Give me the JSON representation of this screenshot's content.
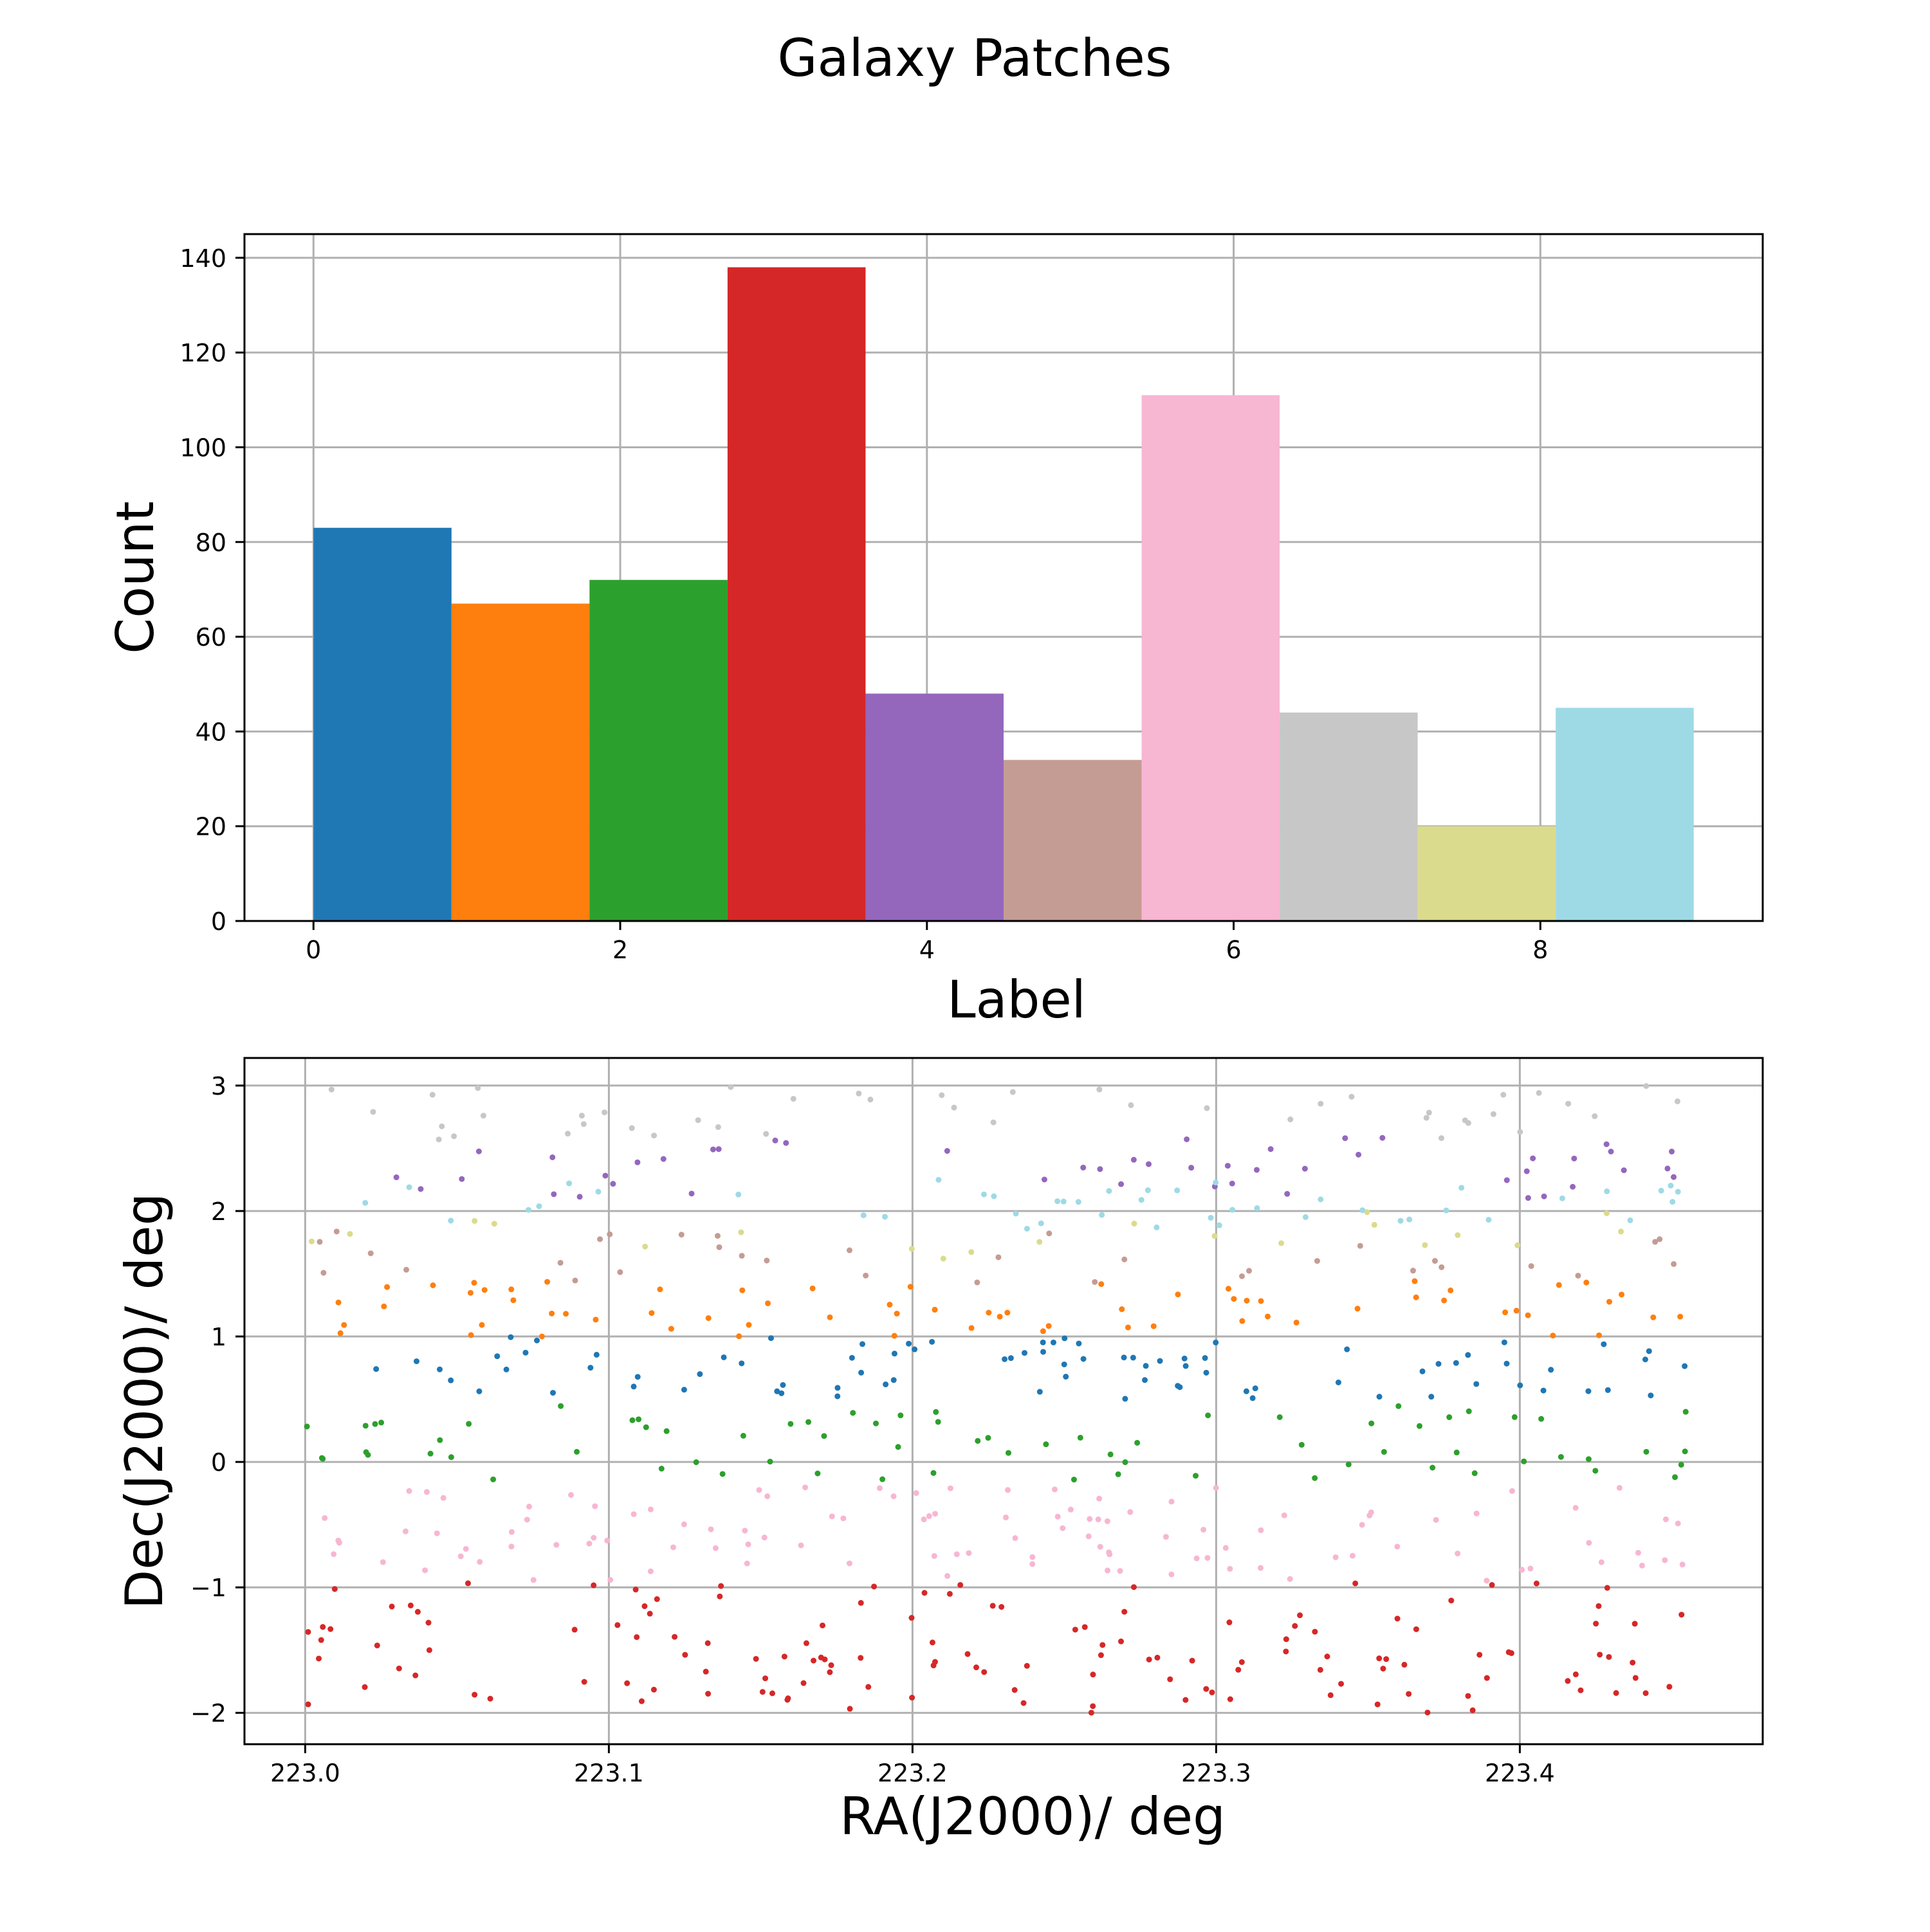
{
  "figure_title": "Galaxy Patches",
  "chart_data": [
    {
      "type": "bar",
      "name": "label-histogram",
      "xlabel": "Label",
      "ylabel": "Count",
      "grid": true,
      "xlim": [
        -0.45,
        9.45
      ],
      "ylim": [
        0,
        145
      ],
      "xticks": [
        0,
        2,
        4,
        6,
        8
      ],
      "yticks": [
        0,
        20,
        40,
        60,
        80,
        100,
        120,
        140
      ],
      "bins": [
        {
          "label": 0,
          "x0": 0.0,
          "x1": 0.9,
          "value": 83,
          "color": "#1f77b4"
        },
        {
          "label": 1,
          "x0": 0.9,
          "x1": 1.8,
          "value": 67,
          "color": "#ff7f0e"
        },
        {
          "label": 2,
          "x0": 1.8,
          "x1": 2.7,
          "value": 72,
          "color": "#2ca02c"
        },
        {
          "label": 3,
          "x0": 2.7,
          "x1": 3.6,
          "value": 138,
          "color": "#d62728"
        },
        {
          "label": 4,
          "x0": 3.6,
          "x1": 4.5,
          "value": 48,
          "color": "#9467bd"
        },
        {
          "label": 5,
          "x0": 4.5,
          "x1": 5.4,
          "value": 34,
          "color": "#c49c94"
        },
        {
          "label": 6,
          "x0": 5.4,
          "x1": 6.3,
          "value": 111,
          "color": "#f7b6d2"
        },
        {
          "label": 7,
          "x0": 6.3,
          "x1": 7.2,
          "value": 44,
          "color": "#c7c7c7"
        },
        {
          "label": 8,
          "x0": 7.2,
          "x1": 8.1,
          "value": 20,
          "color": "#dbdb8d"
        },
        {
          "label": 9,
          "x0": 8.1,
          "x1": 9.0,
          "value": 45,
          "color": "#9edae5"
        }
      ]
    },
    {
      "type": "scatter",
      "name": "sky-positions",
      "xlabel": "RA(J2000)/ deg",
      "ylabel": "Dec(J2000)/ deg",
      "grid": true,
      "xlim": [
        222.98,
        223.48
      ],
      "ylim": [
        -2.25,
        3.22
      ],
      "xticks": [
        223.0,
        223.1,
        223.2,
        223.3,
        223.4
      ],
      "xtick_labels": [
        "223.0",
        "223.1",
        "223.2",
        "223.3",
        "223.4"
      ],
      "yticks": [
        -2,
        -1,
        0,
        1,
        2,
        3
      ],
      "ytick_labels": [
        "−2",
        "−1",
        "0",
        "1",
        "2",
        "3"
      ],
      "ra_range": [
        223.0,
        223.455
      ],
      "series": [
        {
          "label": 0,
          "color": "#1f77b4",
          "count": 83,
          "dec_range": [
            0.5,
            1.0
          ]
        },
        {
          "label": 1,
          "color": "#ff7f0e",
          "count": 67,
          "dec_range": [
            1.0,
            1.45
          ]
        },
        {
          "label": 2,
          "color": "#2ca02c",
          "count": 72,
          "dec_range": [
            -0.15,
            0.45
          ]
        },
        {
          "label": 3,
          "color": "#d62728",
          "count": 138,
          "dec_range": [
            -2.0,
            -0.95
          ]
        },
        {
          "label": 4,
          "color": "#9467bd",
          "count": 48,
          "dec_range": [
            2.1,
            2.6
          ]
        },
        {
          "label": 5,
          "color": "#c49c94",
          "count": 34,
          "dec_range": [
            1.4,
            1.85
          ]
        },
        {
          "label": 6,
          "color": "#f7b6d2",
          "count": 111,
          "dec_range": [
            -0.95,
            -0.2
          ]
        },
        {
          "label": 7,
          "color": "#c7c7c7",
          "count": 44,
          "dec_range": [
            2.55,
            3.0
          ]
        },
        {
          "label": 8,
          "color": "#dbdb8d",
          "count": 20,
          "dec_range": [
            1.6,
            2.0
          ]
        },
        {
          "label": 9,
          "color": "#9edae5",
          "count": 45,
          "dec_range": [
            1.85,
            2.25
          ]
        }
      ]
    }
  ]
}
